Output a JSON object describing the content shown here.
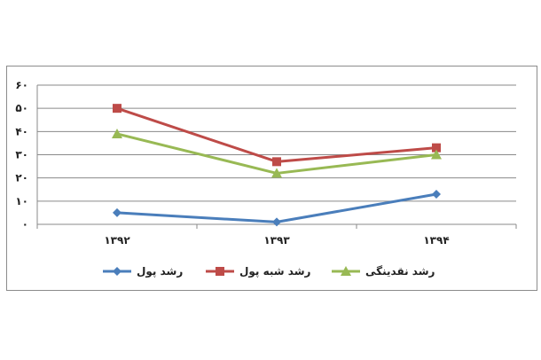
{
  "chart_data": {
    "type": "line",
    "categories": [
      "۱۳۹۲",
      "۱۳۹۳",
      "۱۳۹۴"
    ],
    "series": [
      {
        "name": "رشد پول",
        "values": [
          5,
          1,
          13
        ],
        "color": "#4a7ebb",
        "marker": "diamond"
      },
      {
        "name": "رشد شبه پول",
        "values": [
          50,
          27,
          33
        ],
        "color": "#be4b48",
        "marker": "square"
      },
      {
        "name": "رشد نقدینگی",
        "values": [
          39,
          22,
          30
        ],
        "color": "#98b954",
        "marker": "triangle"
      }
    ],
    "ylim": [
      0,
      60
    ],
    "yticks": [
      0,
      10,
      20,
      30,
      40,
      50,
      60
    ],
    "ytick_labels": [
      "۰",
      "۱۰",
      "۲۰",
      "۳۰",
      "۴۰",
      "۵۰",
      "۶۰"
    ],
    "grid": true,
    "legend_position": "bottom"
  }
}
